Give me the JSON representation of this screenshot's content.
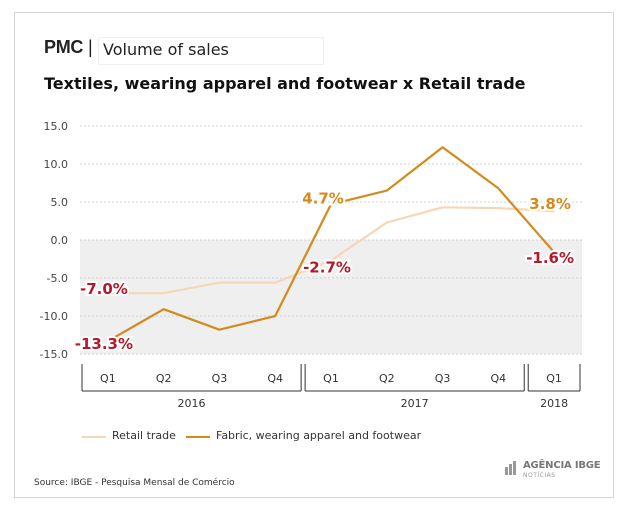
{
  "header": {
    "brand": "PMC",
    "separator": "|",
    "subtitle": "Volume of sales"
  },
  "chart_data": {
    "type": "line",
    "title": "Textiles, wearing apparel and footwear x Retail trade",
    "categories": [
      "Q1",
      "Q2",
      "Q3",
      "Q4",
      "Q1",
      "Q2",
      "Q3",
      "Q4",
      "Q1"
    ],
    "years": [
      {
        "label": "2016",
        "start": 0,
        "end": 3
      },
      {
        "label": "2017",
        "start": 4,
        "end": 7
      },
      {
        "label": "2018",
        "start": 8,
        "end": 8
      }
    ],
    "ylim": [
      -15,
      15
    ],
    "yticks": [
      "15.0",
      "10.0",
      "5.0",
      "0.0",
      "-5.0",
      "-10.0",
      "-15.0"
    ],
    "ytick_values": [
      15,
      10,
      5,
      0,
      -5,
      -10,
      -15
    ],
    "series": [
      {
        "name": "Retail trade",
        "color": "#f5d7b5",
        "values": [
          -7.0,
          -7.0,
          -5.6,
          -5.6,
          -2.7,
          2.3,
          4.3,
          4.2,
          3.8
        ]
      },
      {
        "name": "Fabric, wearing apparel and footwear",
        "color": "#d28b1c",
        "values": [
          -13.3,
          -9.1,
          -11.8,
          -10.0,
          4.7,
          6.5,
          12.2,
          6.8,
          -1.6
        ]
      }
    ],
    "annotations": [
      {
        "text": "-7.0%",
        "series": 0,
        "index": 0,
        "color": "#b5182b"
      },
      {
        "text": "-13.3%",
        "series": 1,
        "index": 0,
        "color": "#b5182b"
      },
      {
        "text": "4.7%",
        "series": 1,
        "index": 4,
        "color": "#d28b1c"
      },
      {
        "text": "-2.7%",
        "series": 0,
        "index": 4,
        "color": "#b5182b"
      },
      {
        "text": "3.8%",
        "series": 0,
        "index": 8,
        "color": "#d28b1c"
      },
      {
        "text": "-1.6%",
        "series": 1,
        "index": 8,
        "color": "#b5182b"
      }
    ],
    "negative_band_color": "#efefef"
  },
  "legend": {
    "items": [
      {
        "label": "Retail trade",
        "color": "#f5d7b5"
      },
      {
        "label": "Fabric, wearing apparel and footwear",
        "color": "#d28b1c"
      }
    ]
  },
  "footer": {
    "source": "Source: IBGE - Pesquisa Mensal de Comércio",
    "agency_name": "AGÊNCIA IBGE",
    "agency_sub": "NOTÍCIAS"
  }
}
